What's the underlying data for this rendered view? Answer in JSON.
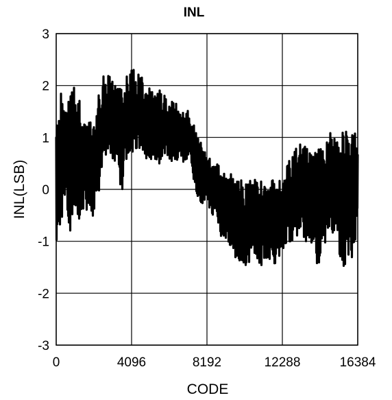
{
  "chart_data": {
    "type": "line",
    "title": "INL",
    "xlabel": "CODE",
    "ylabel": "INL(LSB)",
    "xlim": [
      0,
      16384
    ],
    "ylim": [
      -3,
      3
    ],
    "xticks": [
      0,
      4096,
      8192,
      12288,
      16384
    ],
    "yticks": [
      -3,
      -2,
      -1,
      0,
      1,
      2,
      3
    ],
    "xtick_labels": [
      "0",
      "4096",
      "8192",
      "12288",
      "16384"
    ],
    "ytick_labels": [
      "-3",
      "-2",
      "-1",
      "0",
      "1",
      "2",
      "3"
    ],
    "grid": true,
    "series_color": "#000000",
    "series": [
      {
        "x": [
          0,
          256,
          512,
          768,
          1024,
          1280,
          1536,
          1792,
          2048,
          2304,
          2560,
          2816,
          3072,
          3328,
          3584,
          3840,
          4096,
          4352,
          4608,
          4864,
          5120,
          5376,
          5632,
          5888,
          6144,
          6400,
          6656,
          6912,
          7168,
          7424,
          7680,
          7936,
          8192,
          8448,
          8704,
          8960,
          9216,
          9472,
          9728,
          9984,
          10240,
          10496,
          10752,
          11008,
          11264,
          11520,
          11776,
          12032,
          12288,
          12544,
          12800,
          13056,
          13312,
          13568,
          13824,
          14080,
          14336,
          14592,
          14848,
          15104,
          15360,
          15616,
          15872,
          16128,
          16384
        ],
        "center": [
          0.1,
          0.4,
          0.6,
          0.5,
          0.7,
          0.5,
          0.6,
          0.6,
          0.5,
          0.7,
          1.2,
          1.3,
          1.3,
          1.1,
          1.0,
          1.3,
          1.4,
          1.4,
          1.5,
          1.3,
          1.2,
          1.1,
          1.2,
          1.2,
          1.1,
          1.1,
          1.1,
          1.0,
          1.0,
          0.9,
          0.4,
          0.2,
          0.1,
          0.0,
          -0.1,
          -0.3,
          -0.3,
          -0.4,
          -0.5,
          -0.6,
          -0.7,
          -0.6,
          -0.6,
          -0.7,
          -0.6,
          -0.6,
          -0.7,
          -0.6,
          -0.5,
          -0.3,
          -0.3,
          -0.1,
          0.0,
          -0.1,
          -0.2,
          -0.2,
          -0.3,
          -0.1,
          0.0,
          0.1,
          -0.1,
          -0.2,
          0.0,
          -0.3,
          0.2
        ],
        "upper": [
          1.2,
          2.1,
          1.5,
          1.8,
          2.0,
          1.7,
          1.3,
          1.4,
          1.2,
          1.8,
          2.3,
          2.2,
          2.1,
          2.0,
          1.9,
          2.2,
          2.3,
          2.3,
          2.2,
          2.1,
          1.9,
          2.0,
          1.9,
          1.8,
          1.7,
          1.7,
          1.7,
          1.5,
          1.6,
          1.3,
          1.0,
          0.9,
          0.7,
          0.6,
          0.5,
          0.4,
          0.3,
          0.3,
          0.2,
          0.2,
          0.1,
          0.2,
          0.2,
          0.1,
          0.2,
          0.2,
          0.2,
          0.3,
          0.3,
          0.5,
          0.6,
          0.8,
          0.9,
          0.8,
          0.7,
          0.7,
          0.8,
          0.9,
          1.1,
          1.0,
          0.9,
          1.2,
          1.1,
          1.2,
          0.9
        ],
        "lower": [
          -1.0,
          -0.6,
          -0.3,
          -0.8,
          -0.3,
          -0.6,
          -0.3,
          -0.5,
          -0.6,
          -0.2,
          0.6,
          0.7,
          0.6,
          0.3,
          -0.1,
          0.6,
          0.7,
          0.8,
          0.8,
          0.6,
          0.6,
          0.5,
          0.5,
          0.6,
          0.6,
          0.5,
          0.6,
          0.5,
          0.6,
          0.3,
          -0.3,
          -0.3,
          -0.2,
          -0.5,
          -0.6,
          -0.9,
          -1.0,
          -1.1,
          -1.3,
          -1.5,
          -1.7,
          -1.5,
          -1.2,
          -1.4,
          -1.5,
          -1.3,
          -1.6,
          -1.4,
          -1.2,
          -1.0,
          -1.0,
          -0.9,
          -0.8,
          -1.0,
          -1.2,
          -1.5,
          -1.7,
          -1.2,
          -0.9,
          -0.8,
          -1.2,
          -1.5,
          -1.3,
          -1.6,
          -0.5
        ]
      }
    ]
  }
}
